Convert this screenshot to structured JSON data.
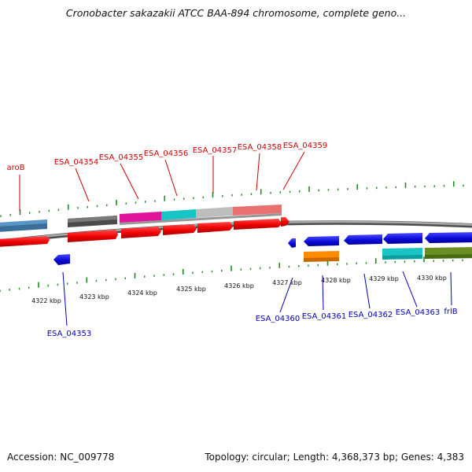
{
  "title": "Cronobacter sakazakii ATCC BAA-894 chromosome, complete geno...",
  "footer": {
    "accession": "Accession: NC_009778",
    "topology": "Topology: circular; Length: 4,368,373 bp; Genes: 4,383"
  },
  "colors": {
    "forward_label": "#cc0000",
    "reverse_label": "#0000bb",
    "forward_cds": "#ee0000",
    "reverse_cds": "#0a0ad8",
    "tick": "#1f8c1f",
    "backbone": "#8a8a8a"
  },
  "map": {
    "scale_labels": [
      "4322 kbp",
      "4323 kbp",
      "4324 kbp",
      "4325 kbp",
      "4326 kbp",
      "4327 kbp",
      "4328 kbp",
      "4329 kbp",
      "4330 kbp"
    ],
    "forward_gene_labels": [
      "aroB",
      "ESA_04354",
      "ESA_04355",
      "ESA_04356",
      "ESA_04357",
      "ESA_04358",
      "ESA_04359"
    ],
    "reverse_gene_labels": [
      "ESA_04353",
      "ESA_04360",
      "ESA_04361",
      "ESA_04362",
      "ESA_04363",
      "frlB"
    ],
    "forward_cog_colors": [
      "#4682b4",
      "#5a5a5a",
      "#e0159b",
      "#18c4c4",
      "#bdbdbd",
      "#e87070"
    ],
    "reverse_cog_colors": [
      "#ff8c00",
      "#18c4c4",
      "#6b8e23"
    ]
  }
}
